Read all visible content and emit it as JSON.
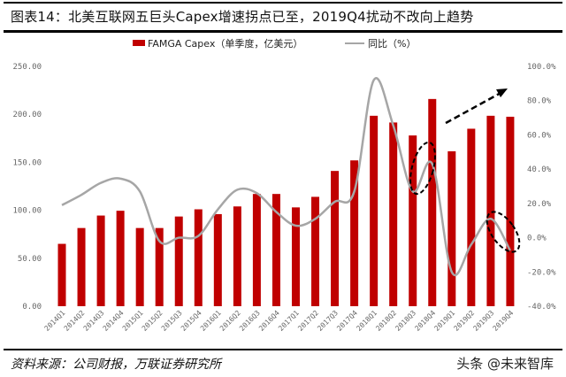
{
  "title": "图表14：北美互联网五巨头Capex增速拐点已至，2019Q4扰动不改向上趋势",
  "source": "资料来源：公司财报，万联证券研究所",
  "watermark": "头条 @未来智库",
  "chart_data": {
    "type": "bar+line",
    "categories": [
      "2014Q1",
      "2014Q2",
      "2014Q3",
      "2014Q4",
      "2015Q1",
      "2015Q2",
      "2015Q3",
      "2015Q4",
      "2016Q1",
      "2016Q2",
      "2016Q3",
      "2016Q4",
      "2017Q1",
      "2017Q2",
      "2017Q3",
      "2017Q4",
      "2018Q1",
      "2018Q2",
      "2018Q3",
      "2018Q4",
      "2019Q1",
      "2019Q2",
      "2019Q3",
      "2019Q4"
    ],
    "series": [
      {
        "name": "FAMGA Capex（单季度，亿美元）",
        "type": "bar",
        "axis": "left",
        "color": "#c00000",
        "values": [
          65,
          81.5,
          94.5,
          99.5,
          81.5,
          81.5,
          93.5,
          101,
          96,
          104,
          117,
          117,
          103,
          114,
          141,
          152,
          198.5,
          191.5,
          178,
          216,
          161.5,
          185,
          198.5,
          197.5
        ]
      },
      {
        "name": "同比（%）",
        "type": "line",
        "axis": "right",
        "color": "#a6a6a6",
        "values": [
          19,
          25,
          32,
          34.5,
          27,
          -2,
          0,
          1,
          16.5,
          28,
          26,
          15,
          7,
          11,
          21,
          27,
          92,
          65.5,
          27,
          43,
          -20,
          -4,
          11,
          -7.5
        ]
      }
    ],
    "left_axis": {
      "range": [
        0,
        250
      ],
      "ticks": [
        "0.00",
        "50.00",
        "100.00",
        "150.00",
        "200.00",
        "250.00"
      ]
    },
    "right_axis": {
      "range": [
        -40,
        100
      ],
      "ticks": [
        "-40.0%",
        "-20.0%",
        "0.0%",
        "20.0%",
        "40.0%",
        "60.0%",
        "80.0%",
        "100.0%"
      ]
    },
    "legend": "top",
    "grid": false,
    "annotations": [
      "dashed ellipse around 2018Q3-2018Q4 growth",
      "dashed ellipse around 2019Q3-2019Q4 growth",
      "dashed upward arrow"
    ]
  }
}
